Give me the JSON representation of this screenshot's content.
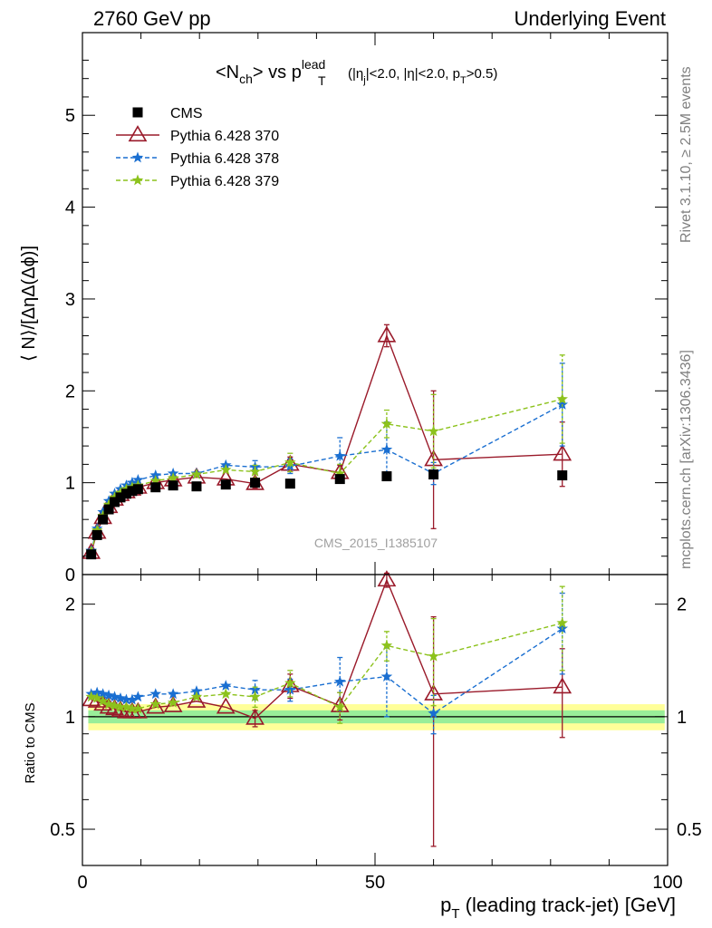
{
  "header": {
    "left": "2760 GeV pp",
    "right": "Underlying Event"
  },
  "title": {
    "main": "<N",
    "main_sub": "ch",
    "main_mid": "> vs p",
    "main_sup": "lead",
    "main_sub2": "T",
    "cut_a": "(|η",
    "cut_a_sub": "j",
    "cut_b": "|<2.0, |η|<2.0, p",
    "cut_b_sub": "T",
    "cut_c": ">0.5)"
  },
  "side_labels": {
    "rivet": "Rivet 3.1.10, ≥ 2.5M events",
    "mcplots": "mcplots.cern.ch [arXiv:1306.3436]"
  },
  "watermark": "CMS_2015_I1385107",
  "chart_data": [
    {
      "type": "scatter",
      "panel": "main",
      "ylabel": "⟨ N⟩/[ΔηΔ(Δϕ)]",
      "xlim": [
        0,
        100
      ],
      "ylim": [
        0,
        5.9
      ],
      "y_ticks": [
        0,
        1,
        2,
        3,
        4,
        5
      ],
      "y_tick_labels": [
        "0",
        "1",
        "2",
        "3",
        "4",
        "5"
      ],
      "legend_position": "top-left",
      "series": [
        {
          "name": "CMS",
          "color": "#000000",
          "marker": "square",
          "line": "none",
          "points": [
            {
              "x": 1.5,
              "y": 0.22
            },
            {
              "x": 2.5,
              "y": 0.43
            },
            {
              "x": 3.5,
              "y": 0.6
            },
            {
              "x": 4.5,
              "y": 0.71
            },
            {
              "x": 5.5,
              "y": 0.79
            },
            {
              "x": 6.5,
              "y": 0.84
            },
            {
              "x": 7.5,
              "y": 0.88
            },
            {
              "x": 8.5,
              "y": 0.91
            },
            {
              "x": 9.5,
              "y": 0.93
            },
            {
              "x": 12.5,
              "y": 0.95
            },
            {
              "x": 15.5,
              "y": 0.97
            },
            {
              "x": 19.5,
              "y": 0.96
            },
            {
              "x": 24.5,
              "y": 0.98
            },
            {
              "x": 29.5,
              "y": 1.0
            },
            {
              "x": 35.5,
              "y": 0.99
            },
            {
              "x": 44.0,
              "y": 1.04
            },
            {
              "x": 52.0,
              "y": 1.07
            },
            {
              "x": 60.0,
              "y": 1.09
            },
            {
              "x": 82.0,
              "y": 1.08
            }
          ]
        },
        {
          "name": "Pythia 6.428 370",
          "color": "#9a1a2a",
          "marker": "triangle-open",
          "line": "solid",
          "points": [
            {
              "x": 1.5,
              "y": 0.24
            },
            {
              "x": 2.5,
              "y": 0.46
            },
            {
              "x": 3.5,
              "y": 0.62
            },
            {
              "x": 4.5,
              "y": 0.74
            },
            {
              "x": 5.5,
              "y": 0.82
            },
            {
              "x": 6.5,
              "y": 0.87
            },
            {
              "x": 7.5,
              "y": 0.9
            },
            {
              "x": 8.5,
              "y": 0.93
            },
            {
              "x": 9.5,
              "y": 0.95
            },
            {
              "x": 12.5,
              "y": 1.0
            },
            {
              "x": 15.5,
              "y": 1.03
            },
            {
              "x": 19.5,
              "y": 1.06
            },
            {
              "x": 24.5,
              "y": 1.04
            },
            {
              "x": 29.5,
              "y": 0.99,
              "err": 0.05
            },
            {
              "x": 35.5,
              "y": 1.2,
              "err": 0.08
            },
            {
              "x": 44.0,
              "y": 1.11,
              "err": 0.08
            },
            {
              "x": 52.0,
              "y": 2.6,
              "err": 0.12
            },
            {
              "x": 60.0,
              "y": 1.25,
              "err": 0.75
            },
            {
              "x": 82.0,
              "y": 1.31,
              "err": 0.35
            }
          ]
        },
        {
          "name": "Pythia 6.428 378",
          "color": "#1a6fd1",
          "marker": "star",
          "line": "dashed",
          "points": [
            {
              "x": 1.5,
              "y": 0.26
            },
            {
              "x": 2.5,
              "y": 0.5
            },
            {
              "x": 3.5,
              "y": 0.68
            },
            {
              "x": 4.5,
              "y": 0.8
            },
            {
              "x": 5.5,
              "y": 0.88
            },
            {
              "x": 6.5,
              "y": 0.93
            },
            {
              "x": 7.5,
              "y": 0.97
            },
            {
              "x": 8.5,
              "y": 1.0
            },
            {
              "x": 9.5,
              "y": 1.03
            },
            {
              "x": 12.5,
              "y": 1.08
            },
            {
              "x": 15.5,
              "y": 1.1
            },
            {
              "x": 19.5,
              "y": 1.1
            },
            {
              "x": 24.5,
              "y": 1.19
            },
            {
              "x": 29.5,
              "y": 1.17,
              "err": 0.07
            },
            {
              "x": 35.5,
              "y": 1.18,
              "err": 0.08
            },
            {
              "x": 44.0,
              "y": 1.29,
              "err": 0.2
            },
            {
              "x": 52.0,
              "y": 1.36,
              "err": 0.3
            },
            {
              "x": 60.0,
              "y": 1.1,
              "err": 0.12
            },
            {
              "x": 82.0,
              "y": 1.85,
              "err": 0.45
            }
          ]
        },
        {
          "name": "Pythia 6.428 379",
          "color": "#8cc21c",
          "marker": "star",
          "line": "dashed",
          "points": [
            {
              "x": 1.5,
              "y": 0.25
            },
            {
              "x": 2.5,
              "y": 0.48
            },
            {
              "x": 3.5,
              "y": 0.64
            },
            {
              "x": 4.5,
              "y": 0.76
            },
            {
              "x": 5.5,
              "y": 0.84
            },
            {
              "x": 6.5,
              "y": 0.89
            },
            {
              "x": 7.5,
              "y": 0.93
            },
            {
              "x": 8.5,
              "y": 0.95
            },
            {
              "x": 9.5,
              "y": 0.97
            },
            {
              "x": 12.5,
              "y": 1.02
            },
            {
              "x": 15.5,
              "y": 1.05
            },
            {
              "x": 19.5,
              "y": 1.09
            },
            {
              "x": 24.5,
              "y": 1.14
            },
            {
              "x": 29.5,
              "y": 1.12,
              "err": 0.07
            },
            {
              "x": 35.5,
              "y": 1.22,
              "err": 0.1
            },
            {
              "x": 44.0,
              "y": 1.1,
              "err": 0.1
            },
            {
              "x": 52.0,
              "y": 1.64,
              "err": 0.15
            },
            {
              "x": 60.0,
              "y": 1.56,
              "err": 0.4
            },
            {
              "x": 82.0,
              "y": 1.91,
              "err": 0.48
            }
          ]
        }
      ]
    },
    {
      "type": "scatter",
      "panel": "ratio",
      "ylabel": "Ratio to CMS",
      "xlabel": "p_T (leading track-jet) [GeV]",
      "xlabel_main": "p",
      "xlabel_sub": "T",
      "xlabel_rest": " (leading track-jet) [GeV]",
      "xlim": [
        0,
        100
      ],
      "ylim": [
        0.4,
        2.4
      ],
      "y_scale": "log",
      "x_ticks": [
        0,
        50,
        100
      ],
      "x_tick_labels": [
        "0",
        "50",
        "100"
      ],
      "y_ticks": [
        0.5,
        1,
        2
      ],
      "y_tick_labels": [
        "0.5",
        "1",
        "2"
      ],
      "reference_band": {
        "inner": 0.04,
        "outer": 0.08,
        "inner_color": "#99ee99",
        "outer_color": "#ffff99"
      },
      "series": [
        {
          "name": "Pythia 6.428 370",
          "color": "#9a1a2a",
          "marker": "triangle-open",
          "line": "solid",
          "points": [
            {
              "x": 1.5,
              "y": 1.11
            },
            {
              "x": 2.5,
              "y": 1.1
            },
            {
              "x": 3.5,
              "y": 1.08
            },
            {
              "x": 4.5,
              "y": 1.06
            },
            {
              "x": 5.5,
              "y": 1.05
            },
            {
              "x": 6.5,
              "y": 1.04
            },
            {
              "x": 7.5,
              "y": 1.03
            },
            {
              "x": 8.5,
              "y": 1.03
            },
            {
              "x": 9.5,
              "y": 1.03
            },
            {
              "x": 12.5,
              "y": 1.06
            },
            {
              "x": 15.5,
              "y": 1.07
            },
            {
              "x": 19.5,
              "y": 1.1
            },
            {
              "x": 24.5,
              "y": 1.06
            },
            {
              "x": 29.5,
              "y": 0.99,
              "err": 0.05
            },
            {
              "x": 35.5,
              "y": 1.21,
              "err": 0.09
            },
            {
              "x": 44.0,
              "y": 1.07,
              "err": 0.09
            },
            {
              "x": 52.0,
              "y": 2.32,
              "err": 0.1
            },
            {
              "x": 60.0,
              "y": 1.15,
              "err": 0.7
            },
            {
              "x": 82.0,
              "y": 1.2,
              "err": 0.32
            }
          ]
        },
        {
          "name": "Pythia 6.428 378",
          "color": "#1a6fd1",
          "marker": "star",
          "line": "dashed",
          "points": [
            {
              "x": 1.5,
              "y": 1.15
            },
            {
              "x": 2.5,
              "y": 1.16
            },
            {
              "x": 3.5,
              "y": 1.15
            },
            {
              "x": 4.5,
              "y": 1.14
            },
            {
              "x": 5.5,
              "y": 1.13
            },
            {
              "x": 6.5,
              "y": 1.12
            },
            {
              "x": 7.5,
              "y": 1.11
            },
            {
              "x": 8.5,
              "y": 1.11
            },
            {
              "x": 9.5,
              "y": 1.13
            },
            {
              "x": 12.5,
              "y": 1.15
            },
            {
              "x": 15.5,
              "y": 1.15
            },
            {
              "x": 19.5,
              "y": 1.17
            },
            {
              "x": 24.5,
              "y": 1.21
            },
            {
              "x": 29.5,
              "y": 1.18,
              "err": 0.07
            },
            {
              "x": 35.5,
              "y": 1.18,
              "err": 0.08
            },
            {
              "x": 44.0,
              "y": 1.24,
              "err": 0.2
            },
            {
              "x": 52.0,
              "y": 1.28,
              "err": 0.28
            },
            {
              "x": 60.0,
              "y": 1.02,
              "err": 0.12
            },
            {
              "x": 82.0,
              "y": 1.72,
              "err": 0.42
            }
          ]
        },
        {
          "name": "Pythia 6.428 379",
          "color": "#8cc21c",
          "marker": "star",
          "line": "dashed",
          "points": [
            {
              "x": 1.5,
              "y": 1.13
            },
            {
              "x": 2.5,
              "y": 1.12
            },
            {
              "x": 3.5,
              "y": 1.1
            },
            {
              "x": 4.5,
              "y": 1.08
            },
            {
              "x": 5.5,
              "y": 1.07
            },
            {
              "x": 6.5,
              "y": 1.06
            },
            {
              "x": 7.5,
              "y": 1.06
            },
            {
              "x": 8.5,
              "y": 1.05
            },
            {
              "x": 9.5,
              "y": 1.05
            },
            {
              "x": 12.5,
              "y": 1.08
            },
            {
              "x": 15.5,
              "y": 1.09
            },
            {
              "x": 19.5,
              "y": 1.13
            },
            {
              "x": 24.5,
              "y": 1.15
            },
            {
              "x": 29.5,
              "y": 1.13,
              "err": 0.07
            },
            {
              "x": 35.5,
              "y": 1.23,
              "err": 0.1
            },
            {
              "x": 44.0,
              "y": 1.06,
              "err": 0.1
            },
            {
              "x": 52.0,
              "y": 1.55,
              "err": 0.14
            },
            {
              "x": 60.0,
              "y": 1.45,
              "err": 0.38
            },
            {
              "x": 82.0,
              "y": 1.78,
              "err": 0.45
            }
          ]
        }
      ]
    }
  ]
}
